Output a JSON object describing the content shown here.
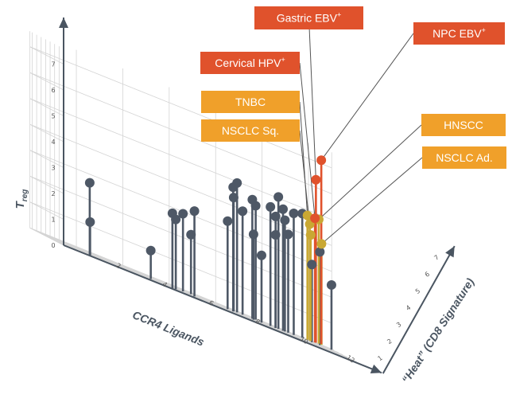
{
  "chart_data": {
    "type": "scatter",
    "variant": "3d-lollipop",
    "title": "",
    "xlabel": "CCR4 Ligands",
    "ylabel": "T",
    "ylabel_sub": "reg",
    "zlabel": "“Heat” (CD8 Signature)",
    "x_ticks": [
      "2",
      "4",
      "6",
      "8",
      "10",
      "12"
    ],
    "y_ticks": [
      "0",
      "1",
      "2",
      "3",
      "4",
      "5",
      "6",
      "7"
    ],
    "z_ticks": [
      "1",
      "2",
      "3",
      "4",
      "5",
      "6",
      "7"
    ],
    "xlim": [
      0,
      13
    ],
    "ylim": [
      0,
      7.5
    ],
    "zlim": [
      0,
      7.5
    ],
    "grid": true,
    "colors": {
      "gray": "#4e5866",
      "olive": "#c9a833",
      "red": "#e0522c",
      "orange_box": "#f0a02a",
      "red_box": "#e0522c",
      "grid": "#d4d4d4",
      "axis": "#4a5561"
    },
    "series": [
      {
        "color_key": "gray",
        "points": [
          {
            "x": 1.2,
            "y": 1.3,
            "z": 0.3
          },
          {
            "x": 1.3,
            "y": 2.8,
            "z": 0.9
          },
          {
            "x": 4.9,
            "y": 2.9,
            "z": 1.1
          },
          {
            "x": 6.1,
            "y": 3.3,
            "z": 2.4
          },
          {
            "x": 5.2,
            "y": 2.7,
            "z": 1.9
          },
          {
            "x": 4.2,
            "y": 1.1,
            "z": 2.3
          },
          {
            "x": 5.8,
            "y": 3.0,
            "z": 3.4
          },
          {
            "x": 6.3,
            "y": 2.3,
            "z": 4.2
          },
          {
            "x": 7.8,
            "y": 3.4,
            "z": 3.8
          },
          {
            "x": 8.0,
            "y": 4.8,
            "z": 3.6
          },
          {
            "x": 8.1,
            "y": 4.4,
            "z": 4.0
          },
          {
            "x": 8.4,
            "y": 5.0,
            "z": 4.8
          },
          {
            "x": 8.6,
            "y": 4.0,
            "z": 4.6
          },
          {
            "x": 9.0,
            "y": 4.6,
            "z": 4.5
          },
          {
            "x": 9.3,
            "y": 4.4,
            "z": 5.3
          },
          {
            "x": 8.8,
            "y": 3.3,
            "z": 3.2
          },
          {
            "x": 9.3,
            "y": 2.6,
            "z": 4.0
          },
          {
            "x": 9.8,
            "y": 4.6,
            "z": 4.6
          },
          {
            "x": 10.0,
            "y": 3.6,
            "z": 4.5
          },
          {
            "x": 10.1,
            "y": 4.3,
            "z": 5.0
          },
          {
            "x": 10.2,
            "y": 5.1,
            "z": 4.9
          },
          {
            "x": 10.4,
            "y": 4.7,
            "z": 4.9
          },
          {
            "x": 10.5,
            "y": 4.3,
            "z": 5.0
          },
          {
            "x": 10.7,
            "y": 3.8,
            "z": 5.3
          },
          {
            "x": 10.9,
            "y": 4.7,
            "z": 5.1
          },
          {
            "x": 11.5,
            "y": 4.8,
            "z": 6.3
          },
          {
            "x": 11.7,
            "y": 3.0,
            "z": 5.2
          },
          {
            "x": 12.2,
            "y": 3.6,
            "z": 6.0
          },
          {
            "x": 12.7,
            "y": 2.5,
            "z": 6.0
          }
        ]
      },
      {
        "color_key": "olive",
        "points": [
          {
            "x": 11.8,
            "y": 4.8,
            "z": 6.7
          },
          {
            "x": 11.9,
            "y": 4.5,
            "z": 6.7
          },
          {
            "x": 11.9,
            "y": 4.1,
            "z": 6.5
          },
          {
            "x": 12.5,
            "y": 4.8,
            "z": 7.8
          },
          {
            "x": 12.6,
            "y": 3.9,
            "z": 7.7
          }
        ]
      },
      {
        "color_key": "red",
        "points": [
          {
            "x": 12.2,
            "y": 4.8,
            "z": 7.1
          },
          {
            "x": 12.3,
            "y": 6.3,
            "z": 7.4
          },
          {
            "x": 12.9,
            "y": 7.1,
            "z": 9.3
          }
        ]
      }
    ],
    "annotations": [
      {
        "text": "Gastric EBV",
        "sup": "+",
        "style": "red_box",
        "target": {
          "series": 2,
          "point": 1
        }
      },
      {
        "text": "NPC EBV",
        "sup": "+",
        "style": "red_box",
        "target": {
          "series": 2,
          "point": 2
        }
      },
      {
        "text": "Cervical HPV",
        "sup": "+",
        "style": "red_box",
        "target": {
          "series": 2,
          "point": 0
        }
      },
      {
        "text": "TNBC",
        "sup": "",
        "style": "orange_box",
        "target": {
          "series": 1,
          "point": 0
        }
      },
      {
        "text": "NSCLC Sq.",
        "sup": "",
        "style": "orange_box",
        "target": {
          "series": 1,
          "point": 2
        }
      },
      {
        "text": "HNSCC",
        "sup": "",
        "style": "orange_box",
        "target": {
          "series": 1,
          "point": 3
        }
      },
      {
        "text": "NSCLC Ad.",
        "sup": "",
        "style": "orange_box",
        "target": {
          "series": 1,
          "point": 4
        }
      }
    ]
  }
}
